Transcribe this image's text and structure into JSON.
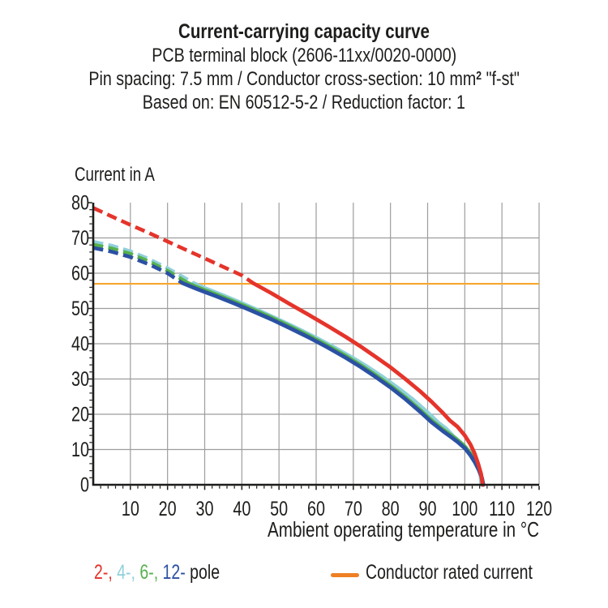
{
  "title": {
    "line1": "Current-carrying capacity curve",
    "line2": "PCB terminal block (2606-11xx/0020-0000)",
    "line3_prefix": "Pin spacing: 7.5 mm / Conductor cross-section: 10 mm",
    "line3_sup": "2",
    "line3_suffix": " \"f-st\"",
    "line4": "Based on: EN 60512-5-2 / Reduction factor: 1"
  },
  "legend": {
    "poles": [
      {
        "label": "2-",
        "color": "#e5342b"
      },
      {
        "label": "4-",
        "color": "#8fd0da"
      },
      {
        "label": "6-",
        "color": "#56b14c"
      },
      {
        "label": "12-",
        "color": "#2b51a3"
      }
    ],
    "separator": ", ",
    "pole_suffix": "pole",
    "rated_label": "Conductor rated current",
    "rated_swatch_color": "#ee8023"
  },
  "chart_data": {
    "type": "line",
    "title": "Current-carrying capacity curve",
    "xlabel": "Ambient operating temperature in °C",
    "ylabel": "Current in A",
    "xlim": [
      0,
      120
    ],
    "ylim": [
      0,
      80
    ],
    "x_ticks": [
      10,
      20,
      30,
      40,
      50,
      60,
      70,
      80,
      90,
      100,
      110,
      120
    ],
    "y_ticks": [
      0,
      10,
      20,
      30,
      40,
      50,
      60,
      70,
      80
    ],
    "y_gridlines": [
      10,
      20,
      30,
      40,
      50,
      60,
      70
    ],
    "minor_tick_step": 2,
    "grid": true,
    "rated_current": 57,
    "colors": {
      "grid": "#9d9d9d",
      "axis": "#1d1d1b",
      "rated_line": "#f8a72e"
    },
    "series": [
      {
        "name": "4-pole",
        "color": "#8fd0da",
        "dashed": [
          [
            0,
            68.9
          ],
          [
            5,
            67.8
          ],
          [
            10,
            66.2
          ],
          [
            15,
            64.0
          ],
          [
            20,
            61.4
          ],
          [
            23,
            59.6
          ],
          [
            27,
            57.2
          ]
        ],
        "solid": [
          [
            27,
            57.2
          ],
          [
            30,
            55.8
          ],
          [
            35,
            53.7
          ],
          [
            40,
            51.5
          ],
          [
            45,
            49.2
          ],
          [
            50,
            46.8
          ],
          [
            55,
            44.3
          ],
          [
            60,
            41.7
          ],
          [
            65,
            38.9
          ],
          [
            70,
            35.9
          ],
          [
            74,
            33.3
          ],
          [
            78,
            30.5
          ],
          [
            82,
            27.5
          ],
          [
            86,
            24.2
          ],
          [
            90,
            20.5
          ],
          [
            93,
            17.5
          ],
          [
            95,
            15.9
          ],
          [
            97,
            13.7
          ],
          [
            99,
            11.9
          ],
          [
            100.5,
            10.2
          ],
          [
            102,
            8.0
          ],
          [
            103.2,
            5.8
          ],
          [
            104.2,
            3.0
          ],
          [
            104.45,
            0
          ]
        ]
      },
      {
        "name": "6-pole",
        "color": "#56b14c",
        "dashed": [
          [
            0,
            68.1
          ],
          [
            5,
            67.0
          ],
          [
            10,
            65.5
          ],
          [
            15,
            63.3
          ],
          [
            20,
            60.7
          ],
          [
            25.5,
            57.2
          ]
        ],
        "solid": [
          [
            25.5,
            57.2
          ],
          [
            28,
            56.0
          ],
          [
            33,
            54.0
          ],
          [
            38,
            51.9
          ],
          [
            43,
            49.7
          ],
          [
            48,
            47.4
          ],
          [
            53,
            44.9
          ],
          [
            58,
            42.3
          ],
          [
            63,
            39.5
          ],
          [
            68,
            36.5
          ],
          [
            72,
            33.9
          ],
          [
            76,
            31.1
          ],
          [
            80,
            28.1
          ],
          [
            84,
            24.8
          ],
          [
            88,
            21.2
          ],
          [
            91,
            18.3
          ],
          [
            94,
            15.8
          ],
          [
            96,
            14.3
          ],
          [
            98,
            12.7
          ],
          [
            100,
            10.9
          ],
          [
            101.5,
            8.9
          ],
          [
            102.8,
            6.7
          ],
          [
            103.8,
            4.6
          ],
          [
            104.7,
            1.5
          ],
          [
            104.85,
            0
          ]
        ]
      },
      {
        "name": "12-pole",
        "color": "#2b51a3",
        "dashed": [
          [
            0,
            67.2
          ],
          [
            5,
            66.1
          ],
          [
            10,
            64.6
          ],
          [
            15,
            62.5
          ],
          [
            20,
            60.0
          ],
          [
            24,
            57.2
          ]
        ],
        "solid": [
          [
            24,
            57.2
          ],
          [
            28,
            55.5
          ],
          [
            33,
            53.5
          ],
          [
            38,
            51.4
          ],
          [
            43,
            49.2
          ],
          [
            48,
            46.9
          ],
          [
            53,
            44.4
          ],
          [
            58,
            41.8
          ],
          [
            63,
            39.0
          ],
          [
            68,
            36.0
          ],
          [
            72,
            33.4
          ],
          [
            76,
            30.6
          ],
          [
            80,
            27.6
          ],
          [
            84,
            24.3
          ],
          [
            88,
            20.7
          ],
          [
            91,
            17.8
          ],
          [
            94,
            15.3
          ],
          [
            96,
            13.8
          ],
          [
            98,
            12.2
          ],
          [
            100,
            10.4
          ],
          [
            101.5,
            8.4
          ],
          [
            102.8,
            6.2
          ],
          [
            103.8,
            4.1
          ],
          [
            104.6,
            2.0
          ],
          [
            105,
            0
          ]
        ]
      },
      {
        "name": "2-pole",
        "color": "#e5342b",
        "dashed": [
          [
            0,
            78.5
          ],
          [
            5,
            76.1
          ],
          [
            10,
            73.7
          ],
          [
            15,
            71.4
          ],
          [
            20,
            69.0
          ],
          [
            25,
            66.6
          ],
          [
            30,
            64.2
          ],
          [
            35,
            61.8
          ],
          [
            40,
            59.4
          ],
          [
            43,
            57.2
          ]
        ],
        "solid": [
          [
            43,
            57.2
          ],
          [
            48,
            54.3
          ],
          [
            53,
            51.2
          ],
          [
            58,
            48.2
          ],
          [
            63,
            45.1
          ],
          [
            68,
            41.9
          ],
          [
            72,
            39.2
          ],
          [
            76,
            36.3
          ],
          [
            80,
            33.3
          ],
          [
            84,
            30.0
          ],
          [
            88,
            26.5
          ],
          [
            91,
            23.6
          ],
          [
            94,
            20.5
          ],
          [
            96,
            18.2
          ],
          [
            98,
            16.5
          ],
          [
            100,
            14.0
          ],
          [
            101.5,
            11.5
          ],
          [
            102.6,
            9.0
          ],
          [
            103.6,
            6.0
          ],
          [
            104.4,
            3.0
          ],
          [
            104.8,
            0
          ]
        ]
      },
      {
        "name": "Conductor rated current",
        "color": "#f8a72e",
        "hline": 57
      }
    ]
  }
}
